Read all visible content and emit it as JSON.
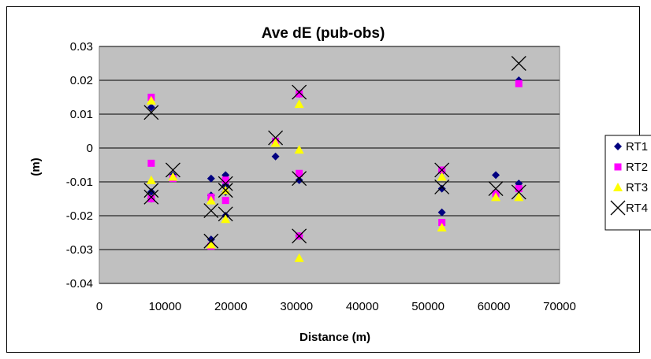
{
  "chart_data": {
    "type": "scatter",
    "title": "Ave dE (pub-obs)",
    "xlabel": "Distance (m)",
    "ylabel": "(m)",
    "xlim": [
      0,
      70000
    ],
    "ylim": [
      -0.04,
      0.03
    ],
    "xticks": [
      "0",
      "10000",
      "20000",
      "30000",
      "40000",
      "50000",
      "60000",
      "70000"
    ],
    "yticks": [
      "0.03",
      "0.02",
      "0.01",
      "0",
      "-0.01",
      "-0.02",
      "-0.03",
      "-0.04"
    ],
    "grid": true,
    "legend_position": "right",
    "series": [
      {
        "name": "RT1",
        "marker": "diamond",
        "color": "#000080",
        "points": [
          [
            7900,
            0.012
          ],
          [
            7900,
            -0.013
          ],
          [
            7900,
            -0.015
          ],
          [
            11200,
            -0.008
          ],
          [
            17000,
            -0.009
          ],
          [
            17000,
            -0.014
          ],
          [
            17000,
            -0.027
          ],
          [
            19200,
            -0.008
          ],
          [
            19200,
            -0.011
          ],
          [
            19200,
            -0.013
          ],
          [
            19200,
            -0.02
          ],
          [
            26800,
            -0.0025
          ],
          [
            30400,
            0.016
          ],
          [
            30400,
            -0.0095
          ],
          [
            30400,
            -0.026
          ],
          [
            52100,
            -0.007
          ],
          [
            52100,
            -0.019
          ],
          [
            52100,
            -0.012
          ],
          [
            60300,
            -0.008
          ],
          [
            63800,
            0.02
          ],
          [
            63800,
            -0.0105
          ]
        ]
      },
      {
        "name": "RT2",
        "marker": "square",
        "color": "#FF00FF",
        "points": [
          [
            7900,
            0.015
          ],
          [
            7900,
            -0.0045
          ],
          [
            7900,
            -0.015
          ],
          [
            11200,
            -0.009
          ],
          [
            17000,
            -0.0145
          ],
          [
            17000,
            -0.029
          ],
          [
            19200,
            -0.0095
          ],
          [
            19200,
            -0.0155
          ],
          [
            26800,
            0.002
          ],
          [
            30400,
            0.016
          ],
          [
            30400,
            -0.0075
          ],
          [
            30400,
            -0.026
          ],
          [
            52100,
            -0.0065
          ],
          [
            52100,
            -0.022
          ],
          [
            60300,
            -0.0135
          ],
          [
            63800,
            0.019
          ],
          [
            63800,
            -0.012
          ]
        ]
      },
      {
        "name": "RT3",
        "marker": "triangle",
        "color": "#FFFF00",
        "points": [
          [
            7900,
            0.014
          ],
          [
            7900,
            -0.0095
          ],
          [
            11200,
            -0.0085
          ],
          [
            17000,
            -0.0155
          ],
          [
            17000,
            -0.0285
          ],
          [
            19200,
            -0.0125
          ],
          [
            19200,
            -0.021
          ],
          [
            26800,
            0.0015
          ],
          [
            30400,
            0.013
          ],
          [
            30400,
            -0.0005
          ],
          [
            30400,
            -0.0325
          ],
          [
            52100,
            -0.0085
          ],
          [
            52100,
            -0.0235
          ],
          [
            60300,
            -0.0145
          ],
          [
            63800,
            -0.0145
          ]
        ]
      },
      {
        "name": "RT4",
        "marker": "x",
        "color": "#000000",
        "points": [
          [
            7900,
            0.0105
          ],
          [
            7900,
            -0.0125
          ],
          [
            7900,
            -0.0145
          ],
          [
            11200,
            -0.0065
          ],
          [
            17000,
            -0.0185
          ],
          [
            17000,
            -0.0275
          ],
          [
            19200,
            -0.0105
          ],
          [
            19200,
            -0.0125
          ],
          [
            19200,
            -0.0195
          ],
          [
            26800,
            0.003
          ],
          [
            30400,
            0.0165
          ],
          [
            30400,
            -0.009
          ],
          [
            30400,
            -0.026
          ],
          [
            52100,
            -0.0065
          ],
          [
            52100,
            -0.0115
          ],
          [
            60300,
            -0.012
          ],
          [
            63800,
            0.025
          ],
          [
            63800,
            -0.013
          ]
        ]
      }
    ]
  }
}
